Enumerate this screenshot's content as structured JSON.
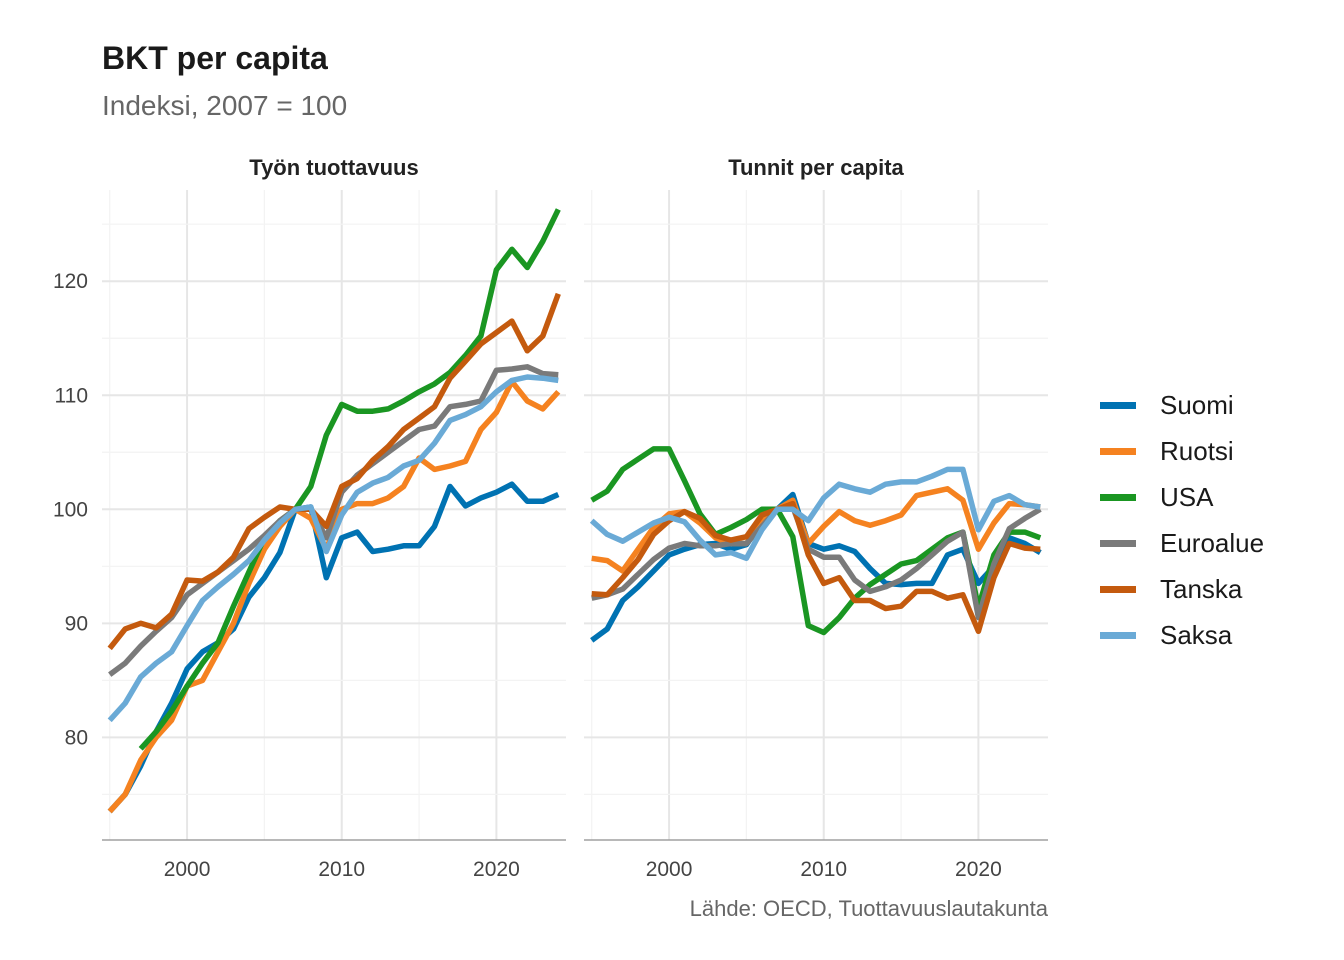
{
  "title": "BKT per capita",
  "subtitle": "Indeksi, 2007 = 100",
  "caption": "Lähde: OECD, Tuottavuuslautakunta",
  "legend": {
    "items": [
      {
        "label": "Suomi",
        "color": "#0072B2"
      },
      {
        "label": "Ruotsi",
        "color": "#F58220"
      },
      {
        "label": "USA",
        "color": "#1A9622"
      },
      {
        "label": "Euroalue",
        "color": "#7A7A7A"
      },
      {
        "label": "Tanska",
        "color": "#C45A0E"
      },
      {
        "label": "Saksa",
        "color": "#6AAAD6"
      }
    ]
  },
  "chart_data": {
    "type": "line",
    "x_ticks": [
      2000,
      2010,
      2020
    ],
    "y_ticks": [
      80,
      90,
      100,
      110,
      120
    ],
    "xlim": [
      1994.5,
      2024.5
    ],
    "ylim": [
      71,
      128
    ],
    "grid": true,
    "legend_position": "right",
    "panels": [
      {
        "title": "Työn tuottavuus",
        "series": [
          {
            "name": "Suomi",
            "x": [
              1995,
              1996,
              1997,
              1998,
              1999,
              2000,
              2001,
              2002,
              2003,
              2004,
              2005,
              2006,
              2007,
              2008,
              2009,
              2010,
              2011,
              2012,
              2013,
              2014,
              2015,
              2016,
              2017,
              2018,
              2019,
              2020,
              2021,
              2022,
              2023,
              2024
            ],
            "values": [
              73.5,
              75.0,
              77.5,
              80.5,
              83.0,
              86.0,
              87.5,
              88.3,
              89.5,
              92.3,
              94.0,
              96.2,
              100.0,
              100.2,
              94.0,
              97.5,
              98.0,
              96.3,
              96.5,
              96.8,
              96.8,
              98.5,
              102.0,
              100.3,
              101.0,
              101.5,
              102.2,
              100.7,
              100.7,
              101.3
            ]
          },
          {
            "name": "Ruotsi",
            "x": [
              1995,
              1996,
              1997,
              1998,
              1999,
              2000,
              2001,
              2002,
              2003,
              2004,
              2005,
              2006,
              2007,
              2008,
              2009,
              2010,
              2011,
              2012,
              2013,
              2014,
              2015,
              2016,
              2017,
              2018,
              2019,
              2020,
              2021,
              2022,
              2023,
              2024
            ],
            "values": [
              73.5,
              75.0,
              78.0,
              80.0,
              81.5,
              84.5,
              85.0,
              87.5,
              90.0,
              93.5,
              96.5,
              98.5,
              100.0,
              99.2,
              96.5,
              100.0,
              100.5,
              100.5,
              101.0,
              102.0,
              104.5,
              103.5,
              103.8,
              104.2,
              107.0,
              108.5,
              111.2,
              109.5,
              108.8,
              110.3
            ]
          },
          {
            "name": "USA",
            "x": [
              1997,
              1998,
              1999,
              2000,
              2001,
              2002,
              2003,
              2004,
              2005,
              2006,
              2007,
              2008,
              2009,
              2010,
              2011,
              2012,
              2013,
              2014,
              2015,
              2016,
              2017,
              2018,
              2019,
              2020,
              2021,
              2022,
              2023,
              2024
            ],
            "values": [
              79.0,
              80.5,
              82.3,
              84.5,
              86.5,
              88.3,
              91.5,
              94.5,
              97.5,
              99.0,
              100.0,
              102.0,
              106.5,
              109.2,
              108.6,
              108.6,
              108.8,
              109.5,
              110.3,
              111.0,
              112.0,
              113.5,
              115.2,
              121.0,
              122.8,
              121.2,
              123.5,
              126.3
            ]
          },
          {
            "name": "Euroalue",
            "x": [
              1995,
              1996,
              1997,
              1998,
              1999,
              2000,
              2001,
              2002,
              2003,
              2004,
              2005,
              2006,
              2007,
              2008,
              2009,
              2010,
              2011,
              2012,
              2013,
              2014,
              2015,
              2016,
              2017,
              2018,
              2019,
              2020,
              2021,
              2022,
              2023,
              2024
            ],
            "values": [
              85.5,
              86.5,
              88.0,
              89.3,
              90.5,
              92.5,
              93.5,
              94.5,
              95.5,
              96.5,
              97.7,
              99.0,
              100.0,
              100.0,
              97.5,
              101.5,
              103.0,
              104.0,
              105.0,
              106.0,
              107.0,
              107.3,
              109.0,
              109.2,
              109.5,
              112.2,
              112.3,
              112.5,
              111.9,
              111.8
            ]
          },
          {
            "name": "Tanska",
            "x": [
              1995,
              1996,
              1997,
              1998,
              1999,
              2000,
              2001,
              2002,
              2003,
              2004,
              2005,
              2006,
              2007,
              2008,
              2009,
              2010,
              2011,
              2012,
              2013,
              2014,
              2015,
              2016,
              2017,
              2018,
              2019,
              2020,
              2021,
              2022,
              2023,
              2024
            ],
            "values": [
              87.8,
              89.5,
              90.0,
              89.6,
              90.8,
              93.8,
              93.7,
              94.5,
              95.8,
              98.3,
              99.3,
              100.2,
              100.0,
              100.0,
              98.5,
              102.0,
              102.7,
              104.3,
              105.5,
              107.0,
              108.0,
              109.0,
              111.5,
              113.0,
              114.5,
              115.5,
              116.5,
              113.9,
              115.2,
              118.9
            ]
          },
          {
            "name": "Saksa",
            "x": [
              1995,
              1996,
              1997,
              1998,
              1999,
              2000,
              2001,
              2002,
              2003,
              2004,
              2005,
              2006,
              2007,
              2008,
              2009,
              2010,
              2011,
              2012,
              2013,
              2014,
              2015,
              2016,
              2017,
              2018,
              2019,
              2020,
              2021,
              2022,
              2023,
              2024
            ],
            "values": [
              81.5,
              83.0,
              85.3,
              86.5,
              87.5,
              89.8,
              92.0,
              93.2,
              94.3,
              95.5,
              97.3,
              98.8,
              100.0,
              100.2,
              96.3,
              99.5,
              101.5,
              102.3,
              102.8,
              103.8,
              104.3,
              105.8,
              107.8,
              108.3,
              109.0,
              110.3,
              111.3,
              111.6,
              111.5,
              111.3
            ]
          }
        ]
      },
      {
        "title": "Tunnit per capita",
        "series": [
          {
            "name": "Suomi",
            "x": [
              1995,
              1996,
              1997,
              1998,
              1999,
              2000,
              2001,
              2002,
              2003,
              2004,
              2005,
              2006,
              2007,
              2008,
              2009,
              2010,
              2011,
              2012,
              2013,
              2014,
              2015,
              2016,
              2017,
              2018,
              2019,
              2020,
              2021,
              2022,
              2023,
              2024
            ],
            "values": [
              88.5,
              89.5,
              92.0,
              93.2,
              94.6,
              96.0,
              96.5,
              96.9,
              97.0,
              96.5,
              96.9,
              98.8,
              100.0,
              101.3,
              97.0,
              96.5,
              96.8,
              96.3,
              94.8,
              93.5,
              93.4,
              93.5,
              93.5,
              96.0,
              96.5,
              93.5,
              95.0,
              97.5,
              97.0,
              96.2
            ]
          },
          {
            "name": "Ruotsi",
            "x": [
              1995,
              1996,
              1997,
              1998,
              1999,
              2000,
              2001,
              2002,
              2003,
              2004,
              2005,
              2006,
              2007,
              2008,
              2009,
              2010,
              2011,
              2012,
              2013,
              2014,
              2015,
              2016,
              2017,
              2018,
              2019,
              2020,
              2021,
              2022,
              2023,
              2024
            ],
            "values": [
              95.7,
              95.5,
              94.6,
              96.5,
              98.4,
              99.6,
              99.8,
              98.8,
              97.5,
              97.0,
              97.0,
              99.0,
              100.0,
              100.8,
              97.0,
              98.5,
              99.8,
              99.0,
              98.6,
              99.0,
              99.5,
              101.2,
              101.5,
              101.8,
              100.8,
              96.5,
              98.8,
              100.5,
              100.4,
              100.2
            ]
          },
          {
            "name": "USA",
            "x": [
              1995,
              1996,
              1997,
              1998,
              1999,
              2000,
              2001,
              2002,
              2003,
              2004,
              2005,
              2006,
              2007,
              2008,
              2009,
              2010,
              2011,
              2012,
              2013,
              2014,
              2015,
              2016,
              2017,
              2018,
              2019,
              2020,
              2021,
              2022,
              2023,
              2024
            ],
            "values": [
              100.8,
              101.6,
              103.5,
              104.4,
              105.3,
              105.3,
              102.5,
              99.6,
              97.8,
              98.4,
              99.1,
              100.0,
              100.0,
              97.6,
              89.8,
              89.2,
              90.5,
              92.2,
              93.4,
              94.3,
              95.2,
              95.5,
              96.5,
              97.5,
              98.0,
              91.4,
              96.0,
              98.0,
              98.0,
              97.5
            ]
          },
          {
            "name": "Euroalue",
            "x": [
              1995,
              1996,
              1997,
              1998,
              1999,
              2000,
              2001,
              2002,
              2003,
              2004,
              2005,
              2006,
              2007,
              2008,
              2009,
              2010,
              2011,
              2012,
              2013,
              2014,
              2015,
              2016,
              2017,
              2018,
              2019,
              2020,
              2021,
              2022,
              2023,
              2024
            ],
            "values": [
              92.2,
              92.5,
              93.0,
              94.3,
              95.6,
              96.6,
              97.0,
              96.8,
              96.8,
              97.0,
              97.0,
              98.5,
              100.0,
              100.2,
              96.5,
              95.8,
              95.8,
              93.8,
              92.8,
              93.2,
              93.8,
              94.8,
              96.0,
              97.2,
              98.0,
              90.5,
              95.2,
              98.3,
              99.2,
              100.0
            ]
          },
          {
            "name": "Tanska",
            "x": [
              1995,
              1996,
              1997,
              1998,
              1999,
              2000,
              2001,
              2002,
              2003,
              2004,
              2005,
              2006,
              2007,
              2008,
              2009,
              2010,
              2011,
              2012,
              2013,
              2014,
              2015,
              2016,
              2017,
              2018,
              2019,
              2020,
              2021,
              2022,
              2023,
              2024
            ],
            "values": [
              92.6,
              92.5,
              94.0,
              95.6,
              97.8,
              99.0,
              99.8,
              99.2,
              97.7,
              97.3,
              97.6,
              99.5,
              100.0,
              100.5,
              96.0,
              93.5,
              94.0,
              92.0,
              92.0,
              91.3,
              91.5,
              92.8,
              92.8,
              92.2,
              92.5,
              89.3,
              94.0,
              97.0,
              96.6,
              96.5
            ]
          },
          {
            "name": "Saksa",
            "x": [
              1995,
              1996,
              1997,
              1998,
              1999,
              2000,
              2001,
              2002,
              2003,
              2004,
              2005,
              2006,
              2007,
              2008,
              2009,
              2010,
              2011,
              2012,
              2013,
              2014,
              2015,
              2016,
              2017,
              2018,
              2019,
              2020,
              2021,
              2022,
              2023,
              2024
            ],
            "values": [
              99.0,
              97.8,
              97.2,
              98.0,
              98.8,
              99.3,
              98.9,
              97.3,
              96.0,
              96.2,
              95.7,
              98.2,
              100.0,
              100.0,
              99.0,
              101.0,
              102.2,
              101.8,
              101.5,
              102.2,
              102.4,
              102.4,
              102.9,
              103.5,
              103.5,
              98.2,
              100.7,
              101.2,
              100.4,
              100.2
            ]
          }
        ]
      }
    ]
  }
}
